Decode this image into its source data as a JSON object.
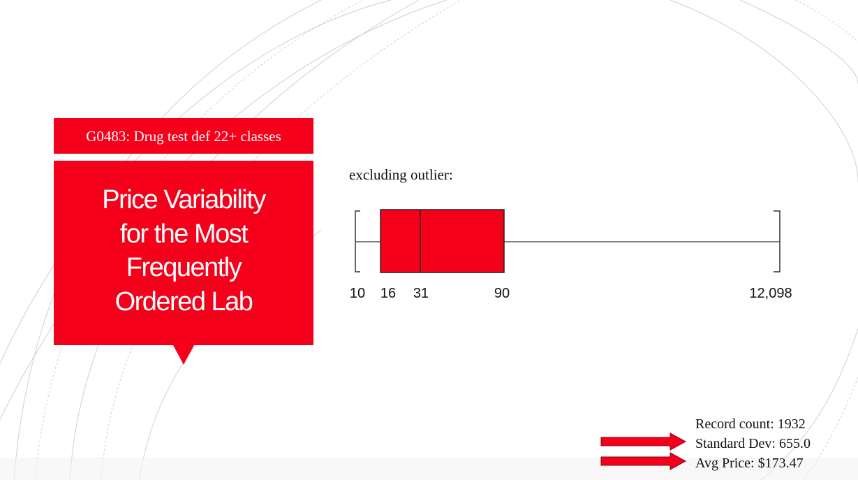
{
  "slide": {
    "code_banner": "G0483: Drug test def 22+ classes",
    "title_lines": [
      "Price Variability",
      "for the Most",
      "Frequently",
      "Ordered Lab"
    ]
  },
  "chart_subtitle": "excluding outlier:",
  "chart_data": {
    "type": "boxplot",
    "title": "",
    "min": 10,
    "q1": 16,
    "median": 31,
    "q3": 90,
    "max": 12098,
    "tick_labels": [
      "10",
      "16",
      "31",
      "90",
      "12,098"
    ],
    "box_color": "#f5001a"
  },
  "stats": {
    "record_count": "Record count: 1932",
    "std_dev": "Standard Dev: 655.0",
    "avg_price": "Avg Price: $173.47"
  },
  "colors": {
    "accent": "#f5001a",
    "text": "#111111"
  },
  "icons": [
    "right-arrow-icon",
    "right-arrow-icon"
  ]
}
